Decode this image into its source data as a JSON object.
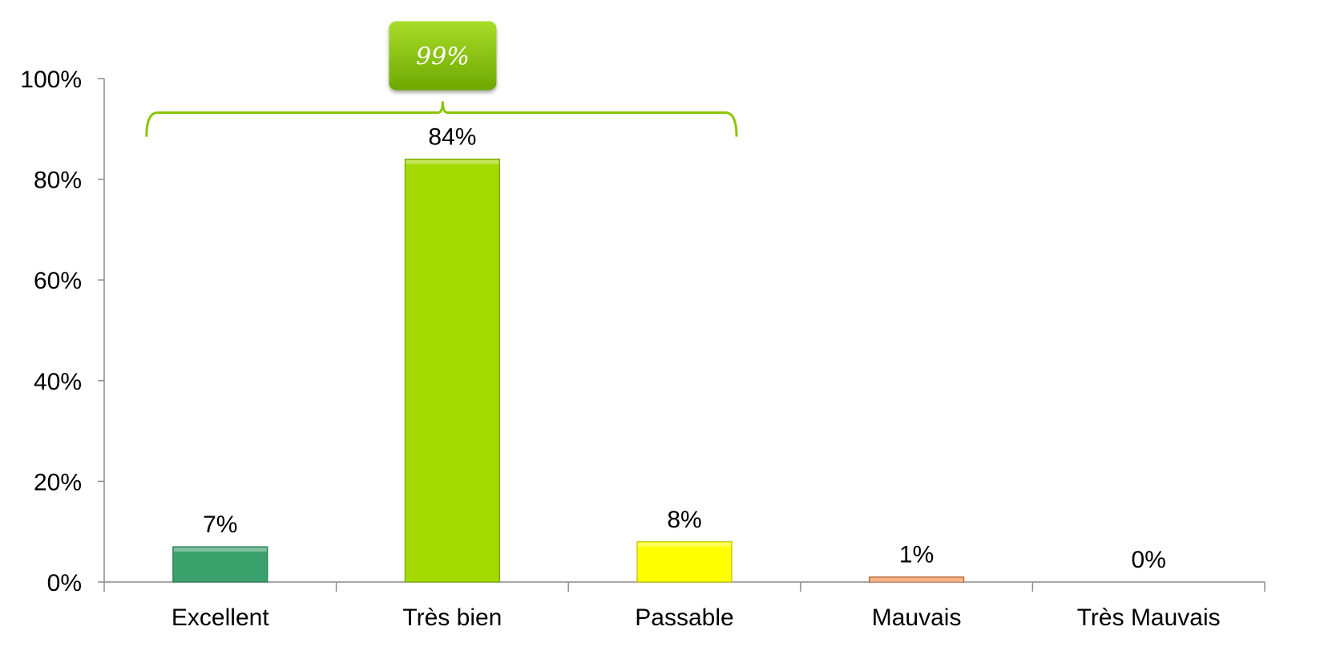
{
  "chart_data": {
    "type": "bar",
    "categories": [
      "Excellent",
      "Très bien",
      "Passable",
      "Mauvais",
      "Très Mauvais"
    ],
    "values": [
      7,
      84,
      8,
      1,
      0
    ],
    "data_labels": [
      "7%",
      "84%",
      "8%",
      "1%",
      "0%"
    ],
    "ylim": [
      0,
      100
    ],
    "y_ticks": [
      0,
      20,
      40,
      60,
      80,
      100
    ],
    "y_tick_labels": [
      "0%",
      "20%",
      "40%",
      "60%",
      "80%",
      "100%"
    ],
    "grid": false,
    "legend": "none",
    "bar_colors": [
      "#3aa06c",
      "#a3d900",
      "#ffff00",
      "#f08c4a",
      "#cccccc"
    ],
    "annotation": {
      "text": "99%",
      "spans_categories": [
        "Excellent",
        "Très bien",
        "Passable"
      ],
      "color": "#8cc400"
    }
  }
}
